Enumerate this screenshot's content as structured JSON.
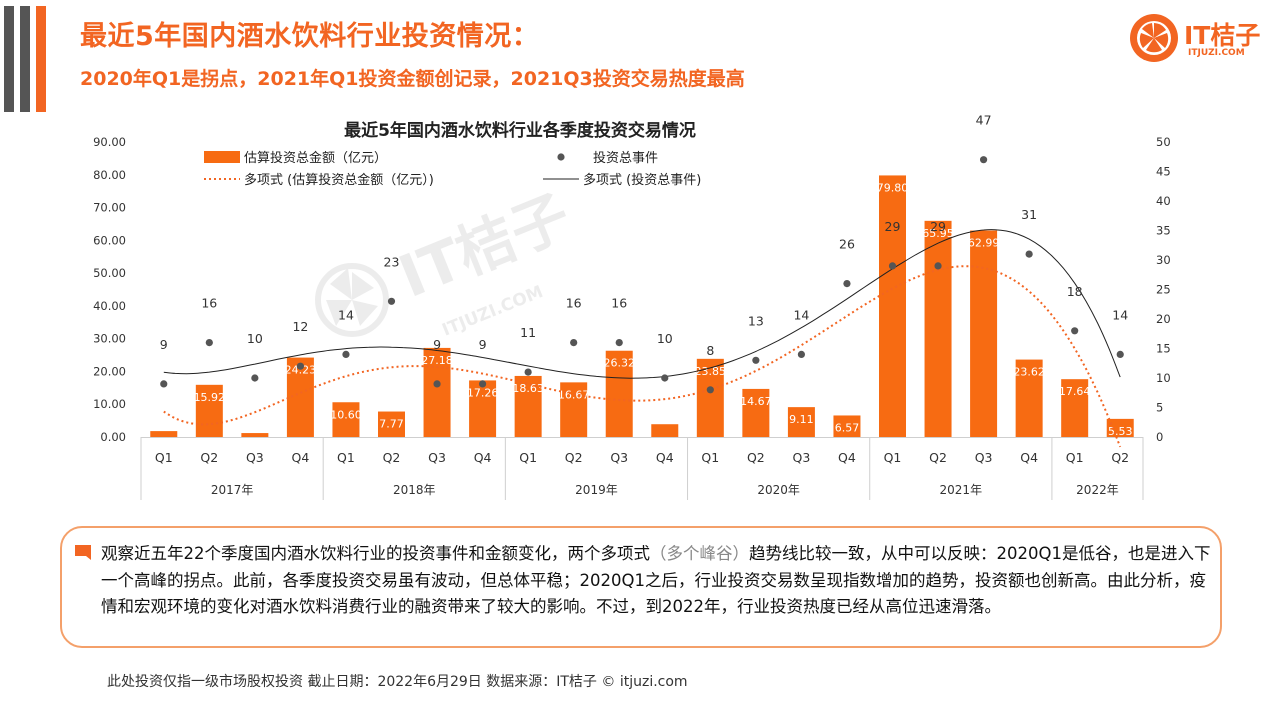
{
  "header": {
    "title": "最近5年国内酒水饮料行业投资情况：",
    "subtitle": "2020年Q1是拐点，2021年Q1投资金额创记录，2021Q3投资交易热度最高",
    "logo_text": "IT桔子",
    "logo_url": "ITJUZI.COM",
    "watermark_text": "IT桔子",
    "watermark_url": "ITJUZI.COM"
  },
  "colors": {
    "accent": "#f26522",
    "bar": "#f76b12",
    "dots": "#555555",
    "line": "#222222",
    "sidebar_dark": "#555555",
    "sidebar_orange": "#f26522"
  },
  "chart_data": {
    "type": "bar",
    "title": "最近5年国内酒水饮料行业各季度投资交易情况",
    "categories": [
      "Q1",
      "Q2",
      "Q3",
      "Q4",
      "Q1",
      "Q2",
      "Q3",
      "Q4",
      "Q1",
      "Q2",
      "Q3",
      "Q4",
      "Q1",
      "Q2",
      "Q3",
      "Q4",
      "Q1",
      "Q2",
      "Q3",
      "Q4",
      "Q1",
      "Q2"
    ],
    "year_groups": [
      {
        "label": "2017年",
        "count": 4
      },
      {
        "label": "2018年",
        "count": 4
      },
      {
        "label": "2019年",
        "count": 4
      },
      {
        "label": "2020年",
        "count": 4
      },
      {
        "label": "2021年",
        "count": 4
      },
      {
        "label": "2022年",
        "count": 2
      }
    ],
    "series": [
      {
        "name": "估算投资总金额（亿元）",
        "axis": "left",
        "type": "bar",
        "values": [
          1.8,
          15.92,
          1.2,
          24.23,
          10.6,
          7.77,
          27.18,
          17.26,
          18.63,
          16.67,
          26.32,
          3.9,
          23.85,
          14.67,
          9.11,
          6.57,
          79.8,
          65.95,
          62.99,
          23.62,
          17.64,
          5.53
        ],
        "labels": [
          "",
          "15.92",
          "",
          "24.23",
          "10.60",
          "7.77",
          "27.18",
          "17.26",
          "18.63",
          "16.67",
          "26.32",
          "",
          "23.85",
          "14.67",
          "9.11",
          "6.57",
          "79.80",
          "65.95",
          "62.99",
          "23.62",
          "17.64",
          "5.53"
        ]
      },
      {
        "name": "投资总事件",
        "axis": "right",
        "type": "scatter",
        "values": [
          9,
          16,
          10,
          12,
          14,
          23,
          9,
          9,
          11,
          16,
          16,
          10,
          8,
          13,
          14,
          26,
          29,
          29,
          47,
          31,
          18,
          14
        ]
      },
      {
        "name": "多项式 (估算投资总金额（亿元）)",
        "axis": "left",
        "type": "trend-dotted"
      },
      {
        "name": "多项式 (投资总事件)",
        "axis": "right",
        "type": "trend-solid"
      }
    ],
    "y_left": {
      "min": 0,
      "max": 90,
      "step": 10,
      "ticks": [
        "0.00",
        "10.00",
        "20.00",
        "30.00",
        "40.00",
        "50.00",
        "60.00",
        "70.00",
        "80.00",
        "90.00"
      ]
    },
    "y_right": {
      "min": 0,
      "max": 50,
      "step": 5,
      "ticks": [
        "0",
        "5",
        "10",
        "15",
        "20",
        "25",
        "30",
        "35",
        "40",
        "45",
        "50"
      ]
    },
    "grid": false,
    "legend_position": "top"
  },
  "summary": {
    "text_before": "观察近五年22个季度国内酒水饮料行业的投资事件和金额变化，两个多项式",
    "text_muted": "（多个峰谷）",
    "text_after": "趋势线比较一致，从中可以反映：2020Q1是低谷，也是进入下一个高峰的拐点。此前，各季度投资交易虽有波动，但总体平稳；2020Q1之后，行业投资交易数呈现指数增加的趋势，投资额也创新高。由此分析，疫情和宏观环境的变化对酒水饮料消费行业的融资带来了较大的影响。不过，到2022年，行业投资热度已经从高位迅速滑落。"
  },
  "footer": {
    "text": "此处投资仅指一级市场股权投资  截止日期：2022年6月29日    数据来源：IT桔子 © itjuzi.com"
  }
}
